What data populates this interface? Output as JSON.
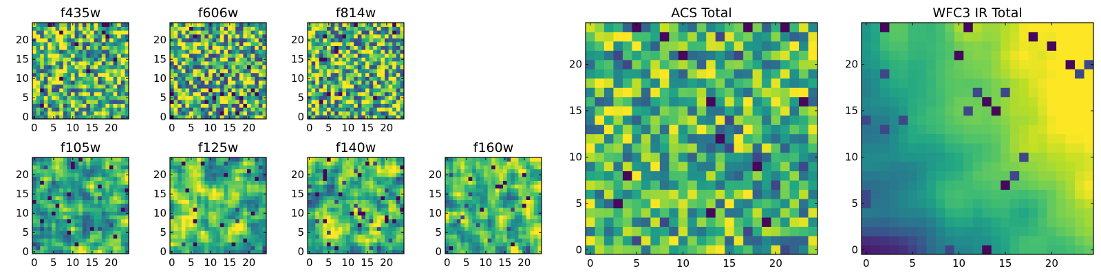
{
  "chart_data": [
    {
      "id": "f435w",
      "type": "heatmap",
      "title": "f435w",
      "grid_size": [
        25,
        25
      ],
      "xlim": [
        -0.5,
        24.5
      ],
      "ylim": [
        -0.5,
        24.5
      ],
      "xticks": [
        0,
        5,
        10,
        15,
        20
      ],
      "yticks": [
        0,
        5,
        10,
        15,
        20
      ],
      "colormap": "viridis",
      "seed": 11,
      "mode": "noise",
      "contrast": 0.55
    },
    {
      "id": "f606w",
      "type": "heatmap",
      "title": "f606w",
      "grid_size": [
        25,
        25
      ],
      "xlim": [
        -0.5,
        24.5
      ],
      "ylim": [
        -0.5,
        24.5
      ],
      "xticks": [
        0,
        5,
        10,
        15,
        20
      ],
      "yticks": [
        0,
        5,
        10,
        15,
        20
      ],
      "colormap": "viridis",
      "seed": 23,
      "mode": "noise",
      "contrast": 0.62
    },
    {
      "id": "f814w",
      "type": "heatmap",
      "title": "f814w",
      "grid_size": [
        25,
        25
      ],
      "xlim": [
        -0.5,
        24.5
      ],
      "ylim": [
        -0.5,
        24.5
      ],
      "xticks": [
        0,
        5,
        10,
        15,
        20
      ],
      "yticks": [
        0,
        5,
        10,
        15,
        20
      ],
      "colormap": "viridis",
      "seed": 37,
      "mode": "noise",
      "contrast": 0.6
    },
    {
      "id": "f105w",
      "type": "heatmap",
      "title": "f105w",
      "grid_size": [
        25,
        25
      ],
      "xlim": [
        -0.5,
        24.5
      ],
      "ylim": [
        -0.5,
        24.5
      ],
      "xticks": [
        0,
        5,
        10,
        15,
        20
      ],
      "yticks": [
        0,
        5,
        10,
        15,
        20
      ],
      "colormap": "viridis",
      "seed": 41,
      "mode": "smooth",
      "contrast": 0.6
    },
    {
      "id": "f125w",
      "type": "heatmap",
      "title": "f125w",
      "grid_size": [
        25,
        25
      ],
      "xlim": [
        -0.5,
        24.5
      ],
      "ylim": [
        -0.5,
        24.5
      ],
      "xticks": [
        0,
        5,
        10,
        15,
        20
      ],
      "yticks": [
        0,
        5,
        10,
        15,
        20
      ],
      "colormap": "viridis",
      "seed": 53,
      "mode": "smooth",
      "contrast": 0.6
    },
    {
      "id": "f140w",
      "type": "heatmap",
      "title": "f140w",
      "grid_size": [
        25,
        25
      ],
      "xlim": [
        -0.5,
        24.5
      ],
      "ylim": [
        -0.5,
        24.5
      ],
      "xticks": [
        0,
        5,
        10,
        15,
        20
      ],
      "yticks": [
        0,
        5,
        10,
        15,
        20
      ],
      "colormap": "viridis",
      "seed": 67,
      "mode": "smooth",
      "contrast": 0.6
    },
    {
      "id": "f160w",
      "type": "heatmap",
      "title": "f160w",
      "grid_size": [
        25,
        25
      ],
      "xlim": [
        -0.5,
        24.5
      ],
      "ylim": [
        -0.5,
        24.5
      ],
      "xticks": [
        0,
        5,
        10,
        15,
        20
      ],
      "yticks": [
        0,
        5,
        10,
        15,
        20
      ],
      "colormap": "viridis",
      "seed": 79,
      "mode": "smooth",
      "contrast": 0.6
    },
    {
      "id": "acs-total",
      "type": "heatmap",
      "title": "ACS Total",
      "grid_size": [
        25,
        25
      ],
      "xlim": [
        -0.5,
        24.5
      ],
      "ylim": [
        -0.5,
        24.5
      ],
      "xticks": [
        0,
        5,
        10,
        15,
        20
      ],
      "yticks": [
        0,
        5,
        10,
        15,
        20
      ],
      "colormap": "viridis",
      "seed": 83,
      "mode": "noise",
      "contrast": 0.45
    },
    {
      "id": "wfc3-ir-total",
      "type": "heatmap",
      "title": "WFC3 IR Total",
      "grid_size": [
        25,
        25
      ],
      "xlim": [
        -0.5,
        24.5
      ],
      "ylim": [
        -0.5,
        24.5
      ],
      "xticks": [
        0,
        5,
        10,
        15,
        20
      ],
      "yticks": [
        0,
        5,
        10,
        15,
        20
      ],
      "colormap": "viridis",
      "seed": 97,
      "mode": "gradient",
      "contrast": 0.55
    }
  ]
}
